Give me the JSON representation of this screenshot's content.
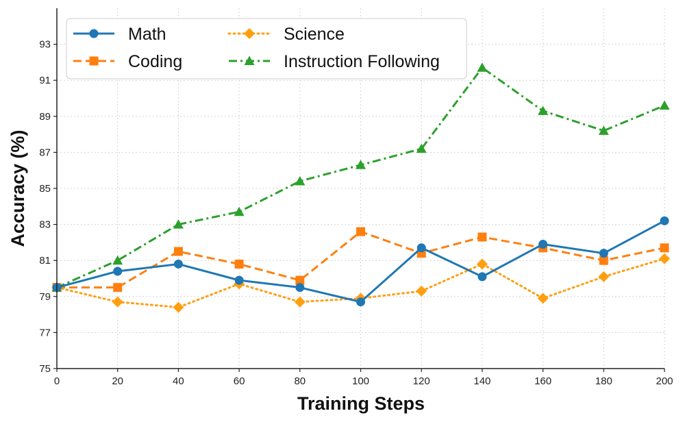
{
  "chart_data": {
    "type": "line",
    "title": "",
    "xlabel": "Training Steps",
    "ylabel": "Accuracy (%)",
    "xlim": [
      0,
      200
    ],
    "ylim": [
      75,
      95
    ],
    "x": [
      0,
      20,
      40,
      60,
      80,
      100,
      120,
      140,
      160,
      180,
      200
    ],
    "xticks": [
      "0",
      "20",
      "40",
      "60",
      "80",
      "100",
      "120",
      "140",
      "160",
      "180",
      "200"
    ],
    "yticks": [
      "75",
      "77",
      "79",
      "81",
      "83",
      "85",
      "87",
      "89",
      "91",
      "93"
    ],
    "grid": true,
    "legend_position": "top-left",
    "series": [
      {
        "name": "Math",
        "color": "#1f77b4",
        "marker": "circle",
        "line_style": "solid",
        "values": [
          79.5,
          80.4,
          80.8,
          79.9,
          79.5,
          78.7,
          81.7,
          80.1,
          81.9,
          81.4,
          83.2
        ]
      },
      {
        "name": "Coding",
        "color": "#ff7f0e",
        "marker": "square",
        "line_style": "dashed",
        "values": [
          79.5,
          79.5,
          81.5,
          80.8,
          79.9,
          82.6,
          81.4,
          82.3,
          81.7,
          81.0,
          81.7
        ]
      },
      {
        "name": "Science",
        "color": "#ff9f10",
        "marker": "diamond",
        "line_style": "dotted",
        "values": [
          79.5,
          78.7,
          78.4,
          79.7,
          78.7,
          78.9,
          79.3,
          80.8,
          78.9,
          80.1,
          81.1
        ]
      },
      {
        "name": "Instruction Following",
        "color": "#2ca02c",
        "marker": "triangle",
        "line_style": "dashdot",
        "values": [
          79.5,
          81.0,
          83.0,
          83.7,
          85.4,
          86.3,
          87.2,
          91.7,
          89.3,
          88.2,
          89.6
        ]
      }
    ]
  }
}
